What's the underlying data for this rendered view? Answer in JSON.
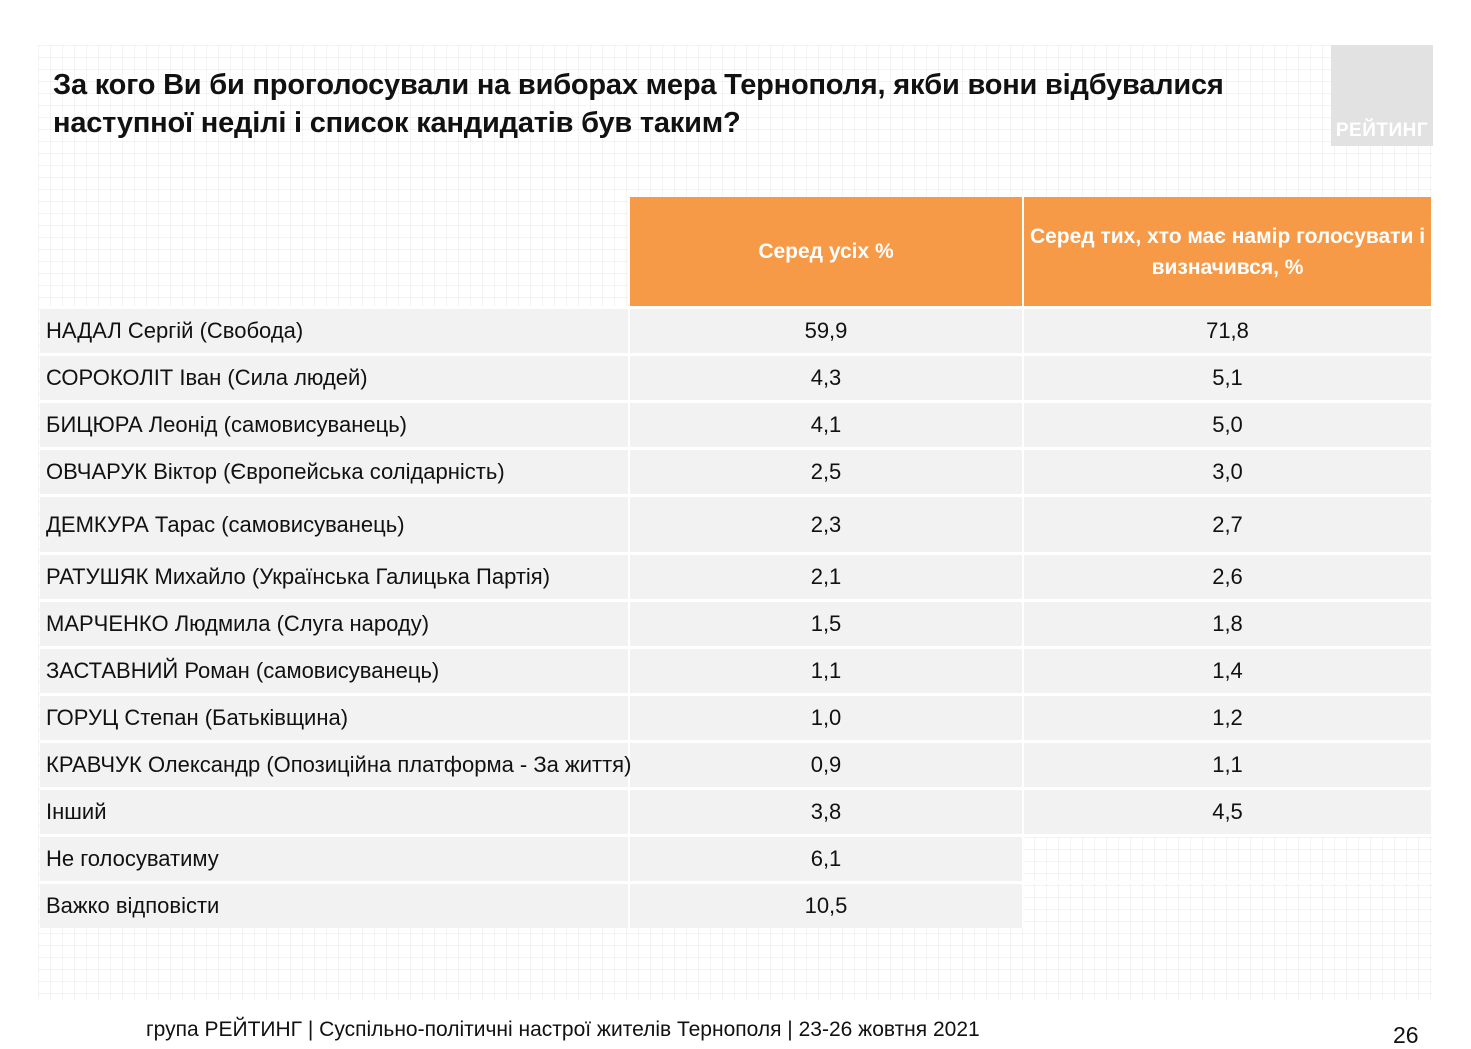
{
  "title": {
    "line1": "За кого Ви би проголосували на виборах мера Тернополя, якби вони відбувалися",
    "line2": "наступної неділі і список кандидатів був таким?"
  },
  "logo": {
    "text": "РЕЙТИНГ"
  },
  "table": {
    "headers": {
      "name": "",
      "all": "Серед усіх %",
      "decided_line1": "Серед тих, хто має намір голосувати і",
      "decided_line2": "визначився, %"
    },
    "rows": [
      {
        "name": "НАДАЛ Сергій (Свобода)",
        "all": "59,9",
        "decided": "71,8"
      },
      {
        "name": "СОРОКОЛІТ Іван (Сила людей)",
        "all": "4,3",
        "decided": "5,1"
      },
      {
        "name": "БИЦЮРА Леонід (самовисуванець)",
        "all": "4,1",
        "decided": "5,0"
      },
      {
        "name": "ОВЧАРУК Віктор (Європейська солідарність)",
        "all": "2,5",
        "decided": "3,0"
      },
      {
        "name": "ДЕМКУРА Тарас (самовисуванець)",
        "all": "2,3",
        "decided": "2,7"
      },
      {
        "name": "РАТУШЯК Михайло (Українська Галицька Партія)",
        "all": "2,1",
        "decided": "2,6"
      },
      {
        "name": "МАРЧЕНКО Людмила (Слуга народу)",
        "all": "1,5",
        "decided": "1,8"
      },
      {
        "name": "ЗАСТАВНИЙ Роман (самовисуванець)",
        "all": "1,1",
        "decided": "1,4"
      },
      {
        "name": "ГОРУЦ Степан (Батьківщина)",
        "all": "1,0",
        "decided": "1,2"
      },
      {
        "name": "КРАВЧУК Олександр (Опозиційна платформа - За життя)",
        "all": "0,9",
        "decided": "1,1"
      },
      {
        "name": "Інший",
        "all": "3,8",
        "decided": "4,5"
      },
      {
        "name": "Не голосуватиму",
        "all": "6,1",
        "decided": ""
      },
      {
        "name": "Важко відповісти",
        "all": "10,5",
        "decided": ""
      }
    ]
  },
  "footer": {
    "text": "група РЕЙТИНГ | Суспільно-політичні настрої жителів Тернополя | 23-26 жовтня 2021",
    "page": "26"
  },
  "colors": {
    "header_bg": "#f79a47",
    "row_bg": "#f2f2f2",
    "logo_bg": "#e2e2e2"
  }
}
